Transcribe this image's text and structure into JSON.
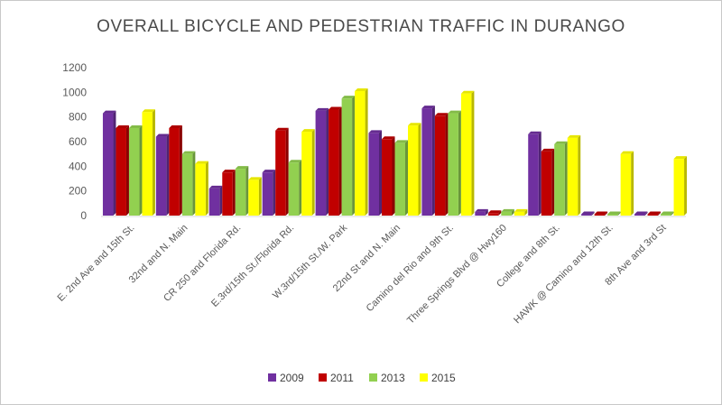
{
  "chart_data": {
    "type": "bar",
    "title": "OVERALL BICYCLE AND PEDESTRIAN TRAFFIC IN DURANGO",
    "xlabel": "",
    "ylabel": "",
    "ylim": [
      0,
      1200
    ],
    "yticks": [
      0,
      200,
      400,
      600,
      800,
      1000,
      1200
    ],
    "grid": false,
    "legend": "bottom",
    "categories": [
      "E. 2nd Ave and 15th St.",
      "32nd and N. Main",
      "CR 250 and Florida Rd.",
      "E.3rd/15th St./Florida Rd.",
      "W.3rd/15th St./W. Park",
      "22nd St and N. Main",
      "Camino del Rio and 9th St.",
      "Three Springs Blvd @ Hwy160",
      "College and 8th St.",
      "HAWK @ Camino and 12th St.",
      "8th Ave and 3rd St"
    ],
    "series": [
      {
        "name": "2009",
        "color": "#7030a0",
        "values": [
          830,
          640,
          220,
          350,
          850,
          670,
          870,
          30,
          660,
          5,
          5
        ]
      },
      {
        "name": "2011",
        "color": "#c00000",
        "values": [
          710,
          710,
          350,
          690,
          860,
          620,
          810,
          20,
          520,
          5,
          5
        ]
      },
      {
        "name": "2013",
        "color": "#92d050",
        "values": [
          710,
          500,
          380,
          430,
          950,
          590,
          830,
          30,
          580,
          5,
          5
        ]
      },
      {
        "name": "2015",
        "color": "#ffff00",
        "values": [
          840,
          420,
          290,
          680,
          1010,
          730,
          990,
          30,
          630,
          500,
          460
        ]
      }
    ]
  }
}
